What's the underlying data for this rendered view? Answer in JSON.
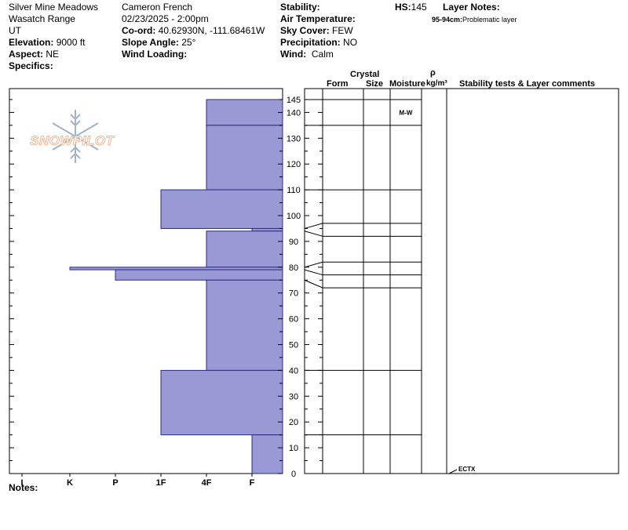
{
  "header": {
    "location": "Silver Mine Meadows",
    "range": "Wasatch Range",
    "state": "UT",
    "elevation_label": "Elevation:",
    "elevation_value": "9000 ft",
    "aspect_label": "Aspect:",
    "aspect_value": "NE",
    "specifics_label": "Specifics:",
    "observer": "Cameron French",
    "datetime": "02/23/2025 - 2:00pm",
    "coord_label": "Co-ord:",
    "coord_value": "40.62930N, -111.68461W",
    "slope_label": "Slope Angle:",
    "slope_value": "25°",
    "wind_loading_label": "Wind Loading:",
    "stability_label": "Stability:",
    "air_temp_label": "Air Temperature:",
    "sky_label": "Sky Cover:",
    "sky_value": "FEW",
    "precip_label": "Precipitation:",
    "precip_value": "NO",
    "wind_label": "Wind:",
    "wind_value": "Calm",
    "hs_label": "HS:",
    "hs_value": "145",
    "layer_notes_label": "Layer Notes:",
    "layer_note_range": "95-94cm:",
    "layer_note_text": "Problematic layer"
  },
  "columns": {
    "crystal": "Crystal",
    "form": "Form",
    "size": "Size",
    "moisture": "Moisture",
    "rho": "ρ",
    "density_unit": "kg/m³",
    "stability": "Stability tests & Layer comments"
  },
  "notes_label": "Notes:",
  "logo_text": "SNOWPILOT",
  "colors": {
    "hardness_fill": "#9999d6",
    "line": "#000000"
  },
  "chart_data": {
    "type": "bar",
    "hardness_categories": [
      "I",
      "K",
      "P",
      "1F",
      "4F",
      "F"
    ],
    "depth_ticks": [
      0,
      10,
      20,
      30,
      40,
      50,
      60,
      70,
      80,
      90,
      100,
      110,
      120,
      130,
      140,
      145
    ],
    "ylim": [
      0,
      145
    ],
    "layers": [
      {
        "top": 145,
        "bottom": 135,
        "hardness": "4F"
      },
      {
        "top": 135,
        "bottom": 110,
        "hardness": "4F"
      },
      {
        "top": 110,
        "bottom": 95,
        "hardness": "1F"
      },
      {
        "top": 95,
        "bottom": 94,
        "hardness": "F"
      },
      {
        "top": 94,
        "bottom": 80,
        "hardness": "4F"
      },
      {
        "top": 80,
        "bottom": 79,
        "hardness": "K"
      },
      {
        "top": 79,
        "bottom": 75,
        "hardness": "P"
      },
      {
        "top": 75,
        "bottom": 40,
        "hardness": "4F"
      },
      {
        "top": 40,
        "bottom": 15,
        "hardness": "1F"
      },
      {
        "top": 15,
        "bottom": 0,
        "hardness": "F"
      }
    ],
    "table_boundaries": [
      145,
      135,
      110,
      97,
      92,
      82,
      77,
      72,
      40,
      15
    ],
    "moisture_labels": [
      {
        "depth": 140,
        "text": "M-W"
      }
    ],
    "tests": [
      {
        "depth": 0,
        "text": "ECTX"
      }
    ]
  }
}
